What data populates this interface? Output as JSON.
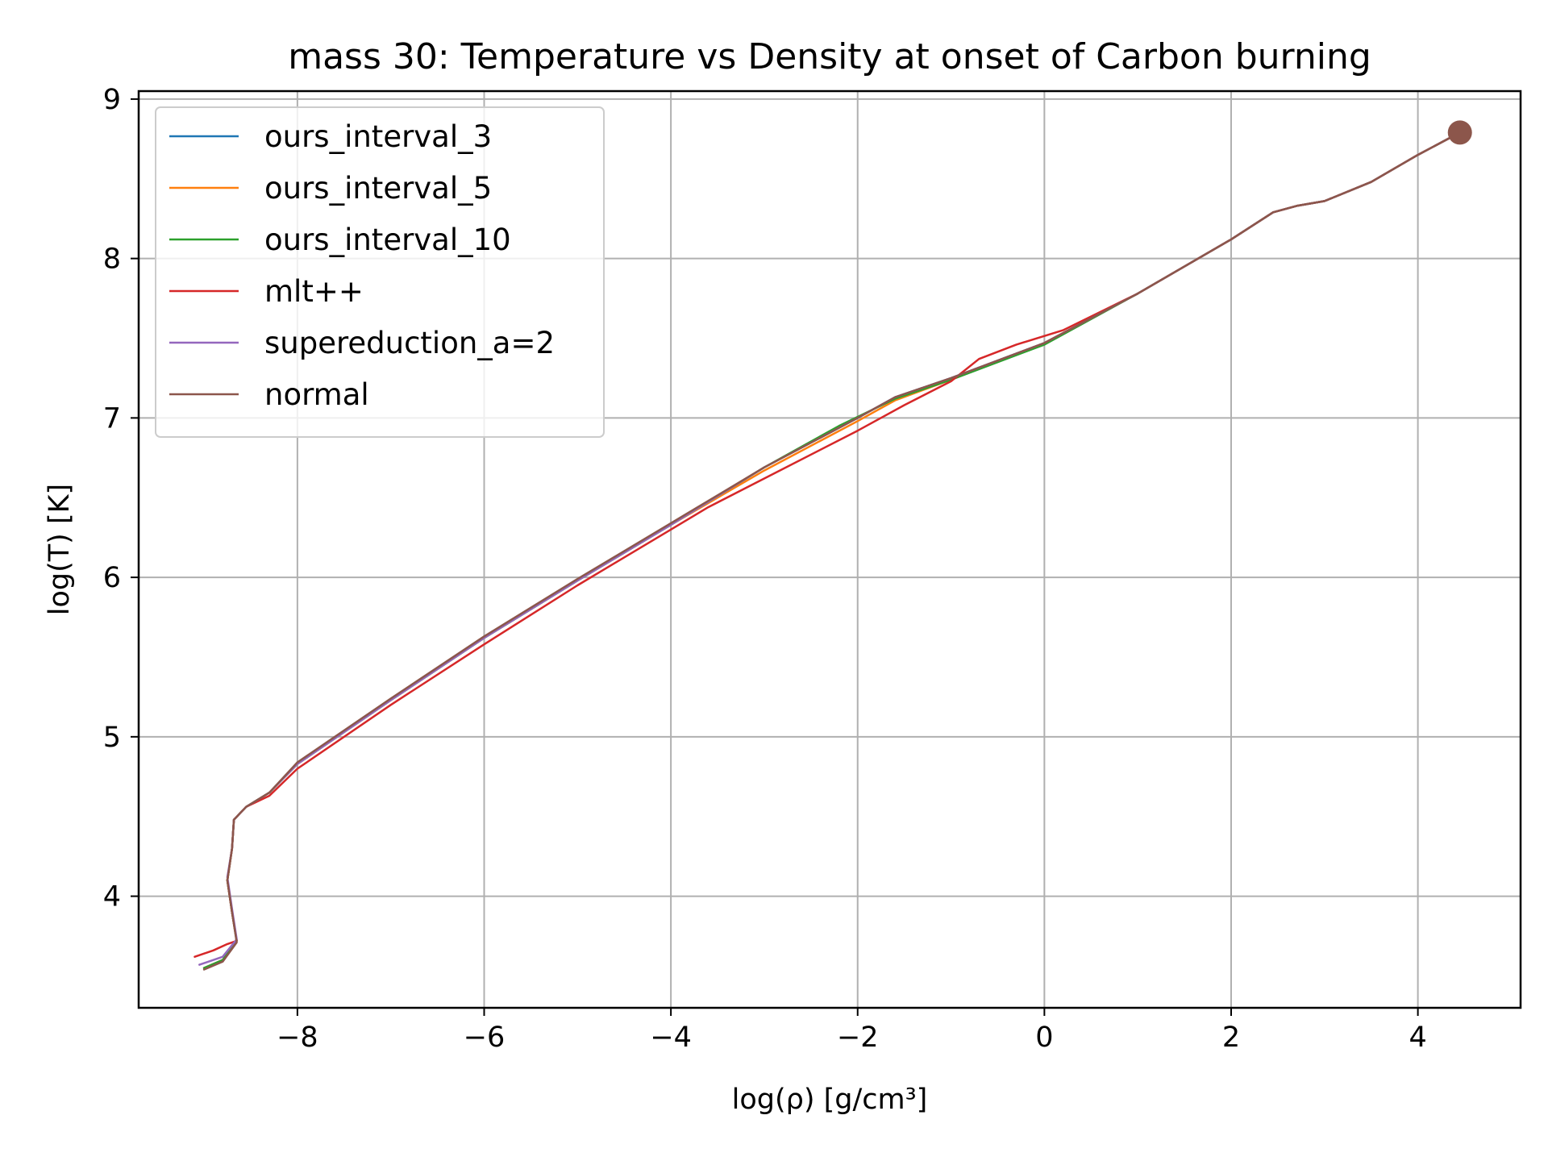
{
  "chart_data": {
    "type": "line",
    "title": "mass 30: Temperature vs Density at onset of Carbon burning",
    "xlabel": "log(ρ) [g/cm³]",
    "ylabel": "log(T) [K]",
    "xlim": [
      -9.7,
      5.1
    ],
    "ylim": [
      3.3,
      9.05
    ],
    "xticks": [
      -8,
      -6,
      -4,
      -2,
      0,
      2,
      4
    ],
    "yticks": [
      4,
      5,
      6,
      7,
      8,
      9
    ],
    "xtick_labels": [
      "−8",
      "−6",
      "−4",
      "−2",
      "0",
      "2",
      "4"
    ],
    "ytick_labels": [
      "4",
      "5",
      "6",
      "7",
      "8",
      "9"
    ],
    "grid": true,
    "legend_position": "upper left",
    "end_marker": {
      "x": 4.45,
      "y": 8.79,
      "color": "#8c564b"
    },
    "series": [
      {
        "name": "ours_interval_3",
        "color": "#1f77b4",
        "points": [
          [
            -9.0,
            3.55
          ],
          [
            -8.8,
            3.6
          ],
          [
            -8.65,
            3.72
          ],
          [
            -8.7,
            3.9
          ],
          [
            -8.75,
            4.1
          ],
          [
            -8.7,
            4.3
          ],
          [
            -8.68,
            4.48
          ],
          [
            -8.55,
            4.56
          ],
          [
            -8.3,
            4.65
          ],
          [
            -8.0,
            4.83
          ],
          [
            -7.0,
            5.23
          ],
          [
            -6.0,
            5.62
          ],
          [
            -5.0,
            5.98
          ],
          [
            -4.0,
            6.33
          ],
          [
            -3.0,
            6.69
          ],
          [
            -2.0,
            7.0
          ],
          [
            -1.6,
            7.13
          ],
          [
            -1.0,
            7.25
          ],
          [
            0.0,
            7.47
          ],
          [
            1.0,
            7.78
          ],
          [
            2.0,
            8.12
          ],
          [
            2.45,
            8.29
          ],
          [
            2.7,
            8.33
          ],
          [
            3.0,
            8.36
          ],
          [
            3.5,
            8.48
          ],
          [
            4.0,
            8.65
          ],
          [
            4.45,
            8.79
          ]
        ]
      },
      {
        "name": "ours_interval_5",
        "color": "#ff7f0e",
        "points": [
          [
            -9.0,
            3.55
          ],
          [
            -8.8,
            3.6
          ],
          [
            -8.65,
            3.72
          ],
          [
            -8.7,
            3.9
          ],
          [
            -8.75,
            4.1
          ],
          [
            -8.7,
            4.3
          ],
          [
            -8.68,
            4.48
          ],
          [
            -8.55,
            4.56
          ],
          [
            -8.3,
            4.65
          ],
          [
            -8.0,
            4.83
          ],
          [
            -7.0,
            5.23
          ],
          [
            -6.0,
            5.62
          ],
          [
            -5.0,
            5.98
          ],
          [
            -4.0,
            6.33
          ],
          [
            -3.0,
            6.67
          ],
          [
            -2.0,
            6.98
          ],
          [
            -1.6,
            7.11
          ],
          [
            -1.0,
            7.24
          ],
          [
            0.0,
            7.47
          ],
          [
            1.0,
            7.78
          ],
          [
            2.0,
            8.12
          ],
          [
            2.45,
            8.29
          ],
          [
            2.7,
            8.33
          ],
          [
            3.0,
            8.36
          ],
          [
            3.5,
            8.48
          ],
          [
            4.0,
            8.65
          ],
          [
            4.45,
            8.79
          ]
        ]
      },
      {
        "name": "ours_interval_10",
        "color": "#2ca02c",
        "points": [
          [
            -9.0,
            3.55
          ],
          [
            -8.8,
            3.6
          ],
          [
            -8.65,
            3.72
          ],
          [
            -8.7,
            3.9
          ],
          [
            -8.75,
            4.1
          ],
          [
            -8.7,
            4.3
          ],
          [
            -8.68,
            4.48
          ],
          [
            -8.55,
            4.56
          ],
          [
            -8.3,
            4.65
          ],
          [
            -8.0,
            4.83
          ],
          [
            -7.0,
            5.23
          ],
          [
            -6.0,
            5.62
          ],
          [
            -5.0,
            5.98
          ],
          [
            -4.0,
            6.33
          ],
          [
            -3.0,
            6.69
          ],
          [
            -2.2,
            6.95
          ],
          [
            -1.6,
            7.12
          ],
          [
            -1.0,
            7.24
          ],
          [
            0.0,
            7.46
          ],
          [
            1.0,
            7.78
          ],
          [
            2.0,
            8.12
          ],
          [
            2.45,
            8.29
          ],
          [
            2.7,
            8.33
          ],
          [
            3.0,
            8.36
          ],
          [
            3.5,
            8.48
          ],
          [
            4.0,
            8.65
          ],
          [
            4.45,
            8.79
          ]
        ]
      },
      {
        "name": "mlt++",
        "color": "#d62728",
        "points": [
          [
            -9.1,
            3.62
          ],
          [
            -8.9,
            3.66
          ],
          [
            -8.75,
            3.7
          ],
          [
            -8.65,
            3.72
          ],
          [
            -8.7,
            3.9
          ],
          [
            -8.75,
            4.1
          ],
          [
            -8.7,
            4.3
          ],
          [
            -8.68,
            4.48
          ],
          [
            -8.55,
            4.56
          ],
          [
            -8.3,
            4.63
          ],
          [
            -8.0,
            4.8
          ],
          [
            -7.0,
            5.2
          ],
          [
            -6.0,
            5.58
          ],
          [
            -5.0,
            5.95
          ],
          [
            -4.0,
            6.3
          ],
          [
            -3.6,
            6.44
          ],
          [
            -3.0,
            6.62
          ],
          [
            -2.0,
            6.92
          ],
          [
            -1.5,
            7.08
          ],
          [
            -1.0,
            7.23
          ],
          [
            -0.7,
            7.37
          ],
          [
            -0.3,
            7.46
          ],
          [
            0.2,
            7.55
          ],
          [
            1.0,
            7.78
          ],
          [
            2.0,
            8.12
          ],
          [
            2.45,
            8.29
          ],
          [
            2.7,
            8.33
          ],
          [
            3.0,
            8.36
          ],
          [
            3.5,
            8.48
          ],
          [
            4.0,
            8.65
          ],
          [
            4.45,
            8.79
          ]
        ]
      },
      {
        "name": "supereduction_a=2",
        "color": "#9467bd",
        "points": [
          [
            -9.05,
            3.57
          ],
          [
            -8.8,
            3.62
          ],
          [
            -8.65,
            3.73
          ],
          [
            -8.7,
            3.92
          ],
          [
            -8.75,
            4.12
          ],
          [
            -8.7,
            4.3
          ],
          [
            -8.68,
            4.48
          ],
          [
            -8.55,
            4.56
          ],
          [
            -8.3,
            4.65
          ],
          [
            -8.0,
            4.83
          ],
          [
            -7.0,
            5.23
          ],
          [
            -6.0,
            5.62
          ],
          [
            -5.0,
            5.98
          ],
          [
            -4.0,
            6.33
          ],
          [
            -3.0,
            6.69
          ],
          [
            -2.0,
            7.0
          ],
          [
            -1.6,
            7.13
          ],
          [
            -1.0,
            7.25
          ],
          [
            0.0,
            7.47
          ],
          [
            1.0,
            7.78
          ],
          [
            2.0,
            8.12
          ],
          [
            2.45,
            8.29
          ],
          [
            2.7,
            8.33
          ],
          [
            3.0,
            8.36
          ],
          [
            3.5,
            8.48
          ],
          [
            4.0,
            8.65
          ],
          [
            4.45,
            8.79
          ]
        ]
      },
      {
        "name": "normal",
        "color": "#8c564b",
        "points": [
          [
            -9.0,
            3.54
          ],
          [
            -8.8,
            3.59
          ],
          [
            -8.65,
            3.71
          ],
          [
            -8.7,
            3.9
          ],
          [
            -8.75,
            4.1
          ],
          [
            -8.7,
            4.3
          ],
          [
            -8.68,
            4.48
          ],
          [
            -8.55,
            4.56
          ],
          [
            -8.3,
            4.65
          ],
          [
            -8.0,
            4.84
          ],
          [
            -7.0,
            5.24
          ],
          [
            -6.0,
            5.63
          ],
          [
            -5.0,
            5.99
          ],
          [
            -4.0,
            6.34
          ],
          [
            -3.0,
            6.69
          ],
          [
            -2.0,
            7.0
          ],
          [
            -1.6,
            7.13
          ],
          [
            -1.0,
            7.25
          ],
          [
            0.0,
            7.47
          ],
          [
            1.0,
            7.78
          ],
          [
            2.0,
            8.12
          ],
          [
            2.45,
            8.29
          ],
          [
            2.7,
            8.33
          ],
          [
            3.0,
            8.36
          ],
          [
            3.5,
            8.48
          ],
          [
            4.0,
            8.65
          ],
          [
            4.45,
            8.79
          ]
        ]
      }
    ]
  }
}
